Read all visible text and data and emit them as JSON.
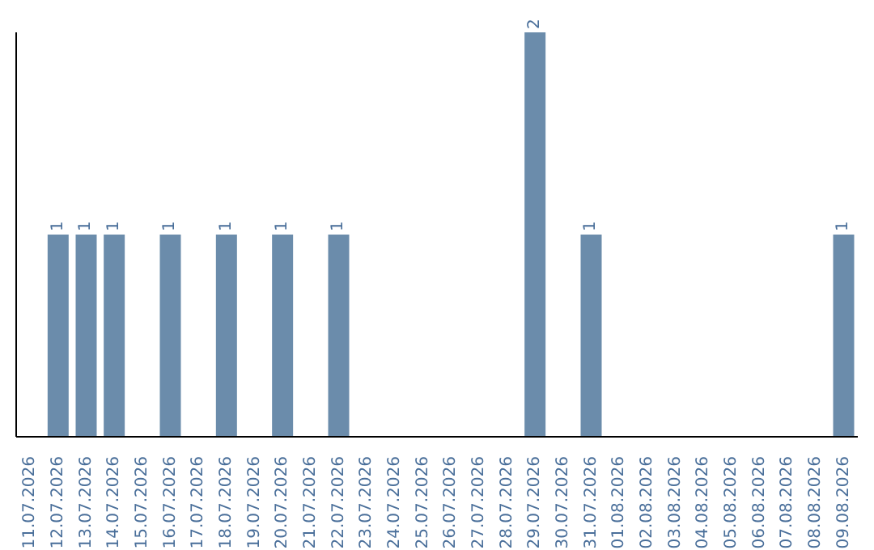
{
  "chart_data": {
    "type": "bar",
    "categories": [
      "11.07.2026",
      "12.07.2026",
      "13.07.2026",
      "14.07.2026",
      "15.07.2026",
      "16.07.2026",
      "17.07.2026",
      "18.07.2026",
      "19.07.2026",
      "20.07.2026",
      "21.07.2026",
      "22.07.2026",
      "23.07.2026",
      "24.07.2026",
      "25.07.2026",
      "26.07.2026",
      "27.07.2026",
      "28.07.2026",
      "29.07.2026",
      "30.07.2026",
      "31.07.2026",
      "01.08.2026",
      "02.08.2026",
      "03.08.2026",
      "04.08.2026",
      "05.08.2026",
      "06.08.2026",
      "07.08.2026",
      "08.08.2026",
      "09.08.2026"
    ],
    "values": [
      0,
      1,
      1,
      1,
      0,
      1,
      0,
      1,
      0,
      1,
      0,
      1,
      0,
      0,
      0,
      0,
      0,
      0,
      2,
      0,
      1,
      0,
      0,
      0,
      0,
      0,
      0,
      0,
      0,
      1
    ],
    "value_labels": [
      null,
      "1",
      "1",
      "1",
      null,
      "1",
      null,
      "1",
      null,
      "1",
      null,
      "1",
      null,
      null,
      null,
      null,
      null,
      null,
      "2",
      null,
      "1",
      null,
      null,
      null,
      null,
      null,
      null,
      null,
      null,
      "1"
    ],
    "color": "#6b8cab",
    "ylim": [
      0,
      2
    ],
    "tick_labels": "x",
    "grid": false,
    "legend": false
  }
}
